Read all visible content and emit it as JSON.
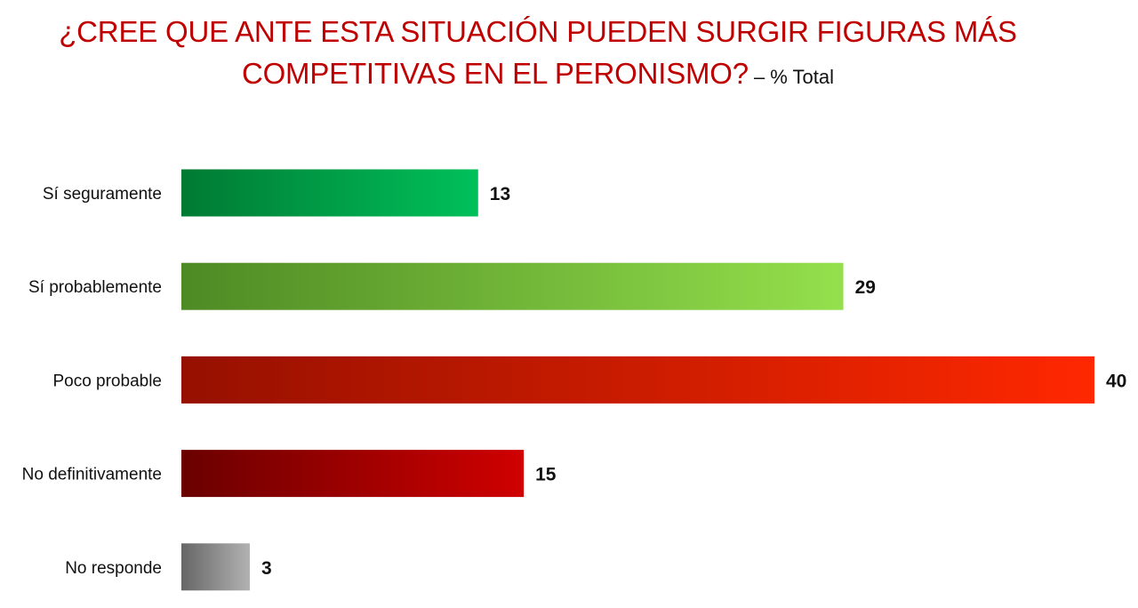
{
  "chart_data": {
    "type": "bar",
    "orientation": "horizontal",
    "title_line1": "¿CREE QUE ANTE ESTA SITUACIÓN PUEDEN SURGIR FIGURAS MÁS",
    "title_line2": "COMPETITIVAS EN EL PERONISMO?",
    "subtitle": "– % Total",
    "categories": [
      "Sí seguramente",
      "Sí probablemente",
      "Poco probable",
      "No definitivamente",
      "No responde"
    ],
    "values": [
      13,
      29,
      40,
      15,
      3
    ],
    "xlim": [
      0,
      40
    ],
    "grid": false,
    "legend": "none",
    "colors": [
      {
        "from": "#007a33",
        "to": "#00c05a"
      },
      {
        "from": "#4e8a24",
        "to": "#94e04c"
      },
      {
        "from": "#961000",
        "to": "#ff2800"
      },
      {
        "from": "#6a0000",
        "to": "#d00000"
      },
      {
        "from": "#666666",
        "to": "#b2b2b2"
      }
    ]
  }
}
